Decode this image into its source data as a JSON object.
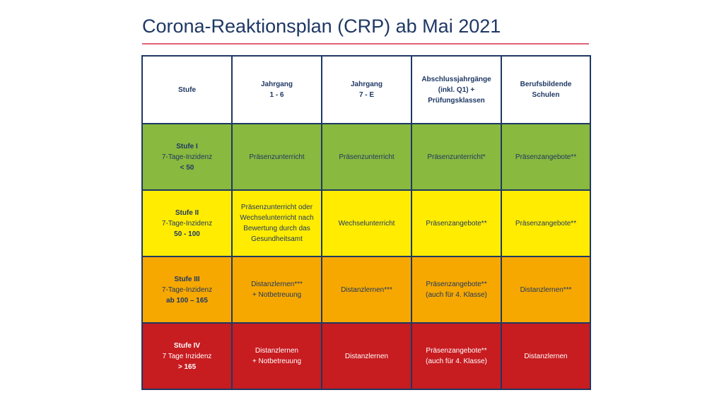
{
  "title": "Corona-Reaktionsplan (CRP) ab Mai 2021",
  "colors": {
    "title": "#1f3864",
    "rule": "#e06477",
    "border": "#1f3864",
    "stufe1": "#89b93e",
    "stufe2": "#ffec00",
    "stufe3": "#f6a800",
    "stufe4": "#c71c20"
  },
  "header": [
    [
      "Stufe"
    ],
    [
      "Jahrgang",
      "1 - 6"
    ],
    [
      "Jahrgang",
      "7 - E"
    ],
    [
      "Abschlussjahrgänge",
      "(inkl. Q1) +",
      "Prüfungsklassen"
    ],
    [
      "Berufsbildende",
      "Schulen"
    ]
  ],
  "rows": [
    {
      "stage": [
        "Stufe I",
        "7-Tage-Inzidenz",
        "< 50"
      ],
      "cells": [
        [
          "Präsenzunterricht"
        ],
        [
          "Präsenzunterricht"
        ],
        [
          "Präsenzunterricht*"
        ],
        [
          "Präsenzangebote**"
        ]
      ]
    },
    {
      "stage": [
        "Stufe II",
        "7-Tage-Inzidenz",
        "50 - 100"
      ],
      "cells": [
        [
          "Präsenzunterricht oder",
          "Wechselunterricht nach",
          "Bewertung durch das",
          "Gesundheitsamt"
        ],
        [
          "Wechselunterricht"
        ],
        [
          "Präsenzangebote**"
        ],
        [
          "Präsenzangebote**"
        ]
      ]
    },
    {
      "stage": [
        "Stufe III",
        "7-Tage-Inzidenz",
        "ab 100 – 165"
      ],
      "cells": [
        [
          "Distanzlernen***",
          "+ Notbetreuung"
        ],
        [
          "Distanzlernen***"
        ],
        [
          "Präsenzangebote**",
          "(auch für 4. Klasse)"
        ],
        [
          "Distanzlernen***"
        ]
      ]
    },
    {
      "stage": [
        "Stufe IV",
        "7 Tage Inzidenz",
        "> 165"
      ],
      "cells": [
        [
          "Distanzlernen",
          "+ Notbetreuung"
        ],
        [
          "Distanzlernen"
        ],
        [
          "Präsenzangebote**",
          "(auch für 4. Klasse)"
        ],
        [
          "Distanzlernen"
        ]
      ]
    }
  ]
}
